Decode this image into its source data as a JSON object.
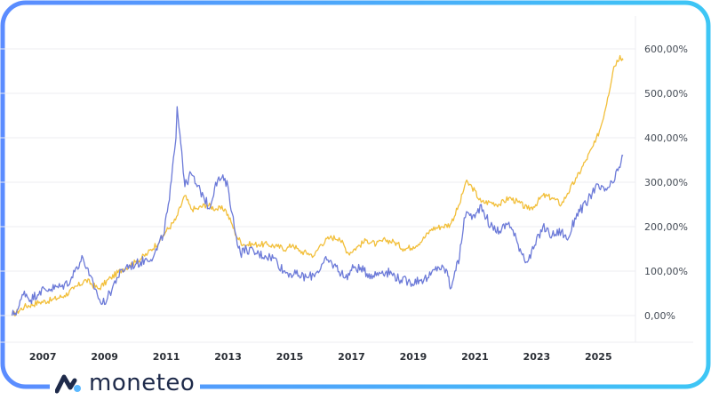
{
  "brand": {
    "name": "moneteo"
  },
  "colors": {
    "frame_gradient": [
      "#5b8cff",
      "#3dc6f5"
    ],
    "series_gold": "#f2bf3a",
    "series_blue": "#6c7ad8",
    "grid": "#ececf2",
    "brand_icon_dark": "#1e2a4a",
    "brand_icon_accent": "#5bb8ff"
  },
  "chart_data": {
    "type": "line",
    "title": "",
    "xlabel": "",
    "ylabel": "",
    "x_ticks": [
      "2007",
      "2009",
      "2011",
      "2013",
      "2015",
      "2017",
      "2019",
      "2021",
      "2023",
      "2025"
    ],
    "y_ticks": [
      "0,00%",
      "100,00%",
      "200,00%",
      "300,00%",
      "400,00%",
      "500,00%",
      "600,00%"
    ],
    "y_tick_values": [
      0,
      100,
      200,
      300,
      400,
      500,
      600
    ],
    "ylim": [
      -60,
      650
    ],
    "xlim": [
      2005.9,
      2026.2
    ],
    "grid": true,
    "series": [
      {
        "color_key": "series_gold",
        "points": [
          [
            2006.0,
            0
          ],
          [
            2006.4,
            20
          ],
          [
            2006.9,
            30
          ],
          [
            2007.3,
            35
          ],
          [
            2007.7,
            45
          ],
          [
            2008.0,
            60
          ],
          [
            2008.4,
            80
          ],
          [
            2008.8,
            60
          ],
          [
            2009.2,
            85
          ],
          [
            2009.6,
            105
          ],
          [
            2010.0,
            120
          ],
          [
            2010.4,
            140
          ],
          [
            2010.8,
            170
          ],
          [
            2011.0,
            190
          ],
          [
            2011.3,
            215
          ],
          [
            2011.6,
            270
          ],
          [
            2011.8,
            240
          ],
          [
            2012.0,
            240
          ],
          [
            2012.3,
            250
          ],
          [
            2012.6,
            240
          ],
          [
            2012.9,
            240
          ],
          [
            2013.1,
            210
          ],
          [
            2013.3,
            175
          ],
          [
            2013.5,
            160
          ],
          [
            2013.8,
            160
          ],
          [
            2014.0,
            160
          ],
          [
            2014.3,
            160
          ],
          [
            2014.6,
            155
          ],
          [
            2014.9,
            150
          ],
          [
            2015.1,
            160
          ],
          [
            2015.3,
            145
          ],
          [
            2015.6,
            140
          ],
          [
            2015.8,
            135
          ],
          [
            2016.0,
            160
          ],
          [
            2016.3,
            175
          ],
          [
            2016.6,
            175
          ],
          [
            2016.9,
            140
          ],
          [
            2017.2,
            155
          ],
          [
            2017.5,
            170
          ],
          [
            2017.8,
            160
          ],
          [
            2018.1,
            170
          ],
          [
            2018.4,
            165
          ],
          [
            2018.7,
            150
          ],
          [
            2019.0,
            155
          ],
          [
            2019.3,
            170
          ],
          [
            2019.6,
            195
          ],
          [
            2019.9,
            200
          ],
          [
            2020.2,
            205
          ],
          [
            2020.5,
            250
          ],
          [
            2020.7,
            300
          ],
          [
            2020.9,
            290
          ],
          [
            2021.2,
            255
          ],
          [
            2021.5,
            255
          ],
          [
            2021.8,
            250
          ],
          [
            2022.1,
            265
          ],
          [
            2022.4,
            255
          ],
          [
            2022.7,
            240
          ],
          [
            2022.9,
            245
          ],
          [
            2023.2,
            270
          ],
          [
            2023.5,
            265
          ],
          [
            2023.8,
            250
          ],
          [
            2024.0,
            275
          ],
          [
            2024.3,
            310
          ],
          [
            2024.6,
            350
          ],
          [
            2024.9,
            390
          ],
          [
            2025.1,
            430
          ],
          [
            2025.3,
            490
          ],
          [
            2025.5,
            560
          ],
          [
            2025.7,
            585
          ],
          [
            2025.8,
            575
          ]
        ]
      },
      {
        "color_key": "series_blue",
        "points": [
          [
            2006.0,
            0
          ],
          [
            2006.2,
            15
          ],
          [
            2006.4,
            55
          ],
          [
            2006.6,
            35
          ],
          [
            2006.9,
            55
          ],
          [
            2007.2,
            60
          ],
          [
            2007.6,
            65
          ],
          [
            2007.9,
            80
          ],
          [
            2008.1,
            110
          ],
          [
            2008.3,
            130
          ],
          [
            2008.5,
            90
          ],
          [
            2008.7,
            60
          ],
          [
            2008.9,
            25
          ],
          [
            2009.1,
            40
          ],
          [
            2009.4,
            85
          ],
          [
            2009.7,
            110
          ],
          [
            2010.0,
            115
          ],
          [
            2010.3,
            125
          ],
          [
            2010.6,
            135
          ],
          [
            2010.9,
            180
          ],
          [
            2011.1,
            260
          ],
          [
            2011.3,
            390
          ],
          [
            2011.35,
            470
          ],
          [
            2011.5,
            370
          ],
          [
            2011.6,
            290
          ],
          [
            2011.8,
            320
          ],
          [
            2012.0,
            290
          ],
          [
            2012.2,
            270
          ],
          [
            2012.4,
            240
          ],
          [
            2012.6,
            300
          ],
          [
            2012.8,
            310
          ],
          [
            2013.0,
            290
          ],
          [
            2013.2,
            200
          ],
          [
            2013.4,
            140
          ],
          [
            2013.6,
            150
          ],
          [
            2013.9,
            140
          ],
          [
            2014.2,
            135
          ],
          [
            2014.5,
            130
          ],
          [
            2014.8,
            100
          ],
          [
            2015.0,
            95
          ],
          [
            2015.3,
            90
          ],
          [
            2015.6,
            85
          ],
          [
            2015.9,
            100
          ],
          [
            2016.2,
            125
          ],
          [
            2016.5,
            110
          ],
          [
            2016.8,
            85
          ],
          [
            2017.1,
            110
          ],
          [
            2017.4,
            100
          ],
          [
            2017.7,
            90
          ],
          [
            2018.0,
            100
          ],
          [
            2018.3,
            95
          ],
          [
            2018.6,
            80
          ],
          [
            2018.9,
            75
          ],
          [
            2019.2,
            80
          ],
          [
            2019.5,
            85
          ],
          [
            2019.8,
            110
          ],
          [
            2020.1,
            100
          ],
          [
            2020.2,
            60
          ],
          [
            2020.35,
            100
          ],
          [
            2020.5,
            130
          ],
          [
            2020.65,
            220
          ],
          [
            2020.8,
            230
          ],
          [
            2021.0,
            220
          ],
          [
            2021.2,
            250
          ],
          [
            2021.5,
            200
          ],
          [
            2021.8,
            190
          ],
          [
            2022.1,
            210
          ],
          [
            2022.4,
            160
          ],
          [
            2022.7,
            120
          ],
          [
            2022.9,
            150
          ],
          [
            2023.2,
            200
          ],
          [
            2023.5,
            180
          ],
          [
            2023.8,
            190
          ],
          [
            2024.0,
            170
          ],
          [
            2024.3,
            230
          ],
          [
            2024.6,
            250
          ],
          [
            2024.9,
            290
          ],
          [
            2025.2,
            280
          ],
          [
            2025.5,
            300
          ],
          [
            2025.8,
            360
          ]
        ]
      }
    ]
  }
}
